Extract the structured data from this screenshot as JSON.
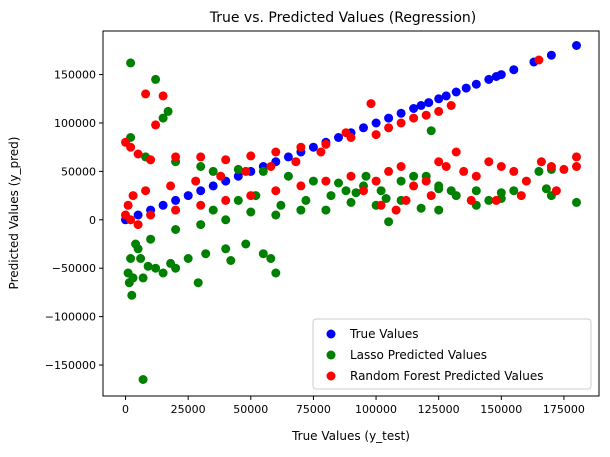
{
  "chart_data": {
    "type": "scatter",
    "title": "True vs. Predicted Values (Regression)",
    "xlabel": "True Values (y_test)",
    "ylabel": "Predicted Values (y_pred)",
    "xlim": [
      -9000,
      189000
    ],
    "ylim": [
      -182000,
      195000
    ],
    "x_ticks": [
      0,
      25000,
      50000,
      75000,
      100000,
      125000,
      150000,
      175000
    ],
    "x_tick_labels": [
      "0",
      "25000",
      "50000",
      "75000",
      "100000",
      "125000",
      "150000",
      "175000"
    ],
    "y_ticks": [
      -150000,
      -100000,
      -50000,
      0,
      50000,
      100000,
      150000
    ],
    "y_tick_labels": [
      "−150000",
      "−100000",
      "−50000",
      "0",
      "50000",
      "100000",
      "150000"
    ],
    "grid": false,
    "legend_position": "bottom-right",
    "series": [
      {
        "name": "True Values",
        "color": "#0000ff",
        "points": [
          [
            0,
            0
          ],
          [
            5000,
            5000
          ],
          [
            10000,
            10000
          ],
          [
            15000,
            15000
          ],
          [
            20000,
            20000
          ],
          [
            25000,
            25000
          ],
          [
            30000,
            30000
          ],
          [
            35000,
            35000
          ],
          [
            40000,
            40000
          ],
          [
            45000,
            45000
          ],
          [
            50000,
            50000
          ],
          [
            55000,
            55000
          ],
          [
            60000,
            60000
          ],
          [
            65000,
            65000
          ],
          [
            70000,
            70000
          ],
          [
            75000,
            75000
          ],
          [
            80000,
            80000
          ],
          [
            85000,
            85000
          ],
          [
            90000,
            90000
          ],
          [
            95000,
            95000
          ],
          [
            100000,
            100000
          ],
          [
            105000,
            105000
          ],
          [
            110000,
            110000
          ],
          [
            115000,
            115000
          ],
          [
            118000,
            118000
          ],
          [
            121000,
            121000
          ],
          [
            125000,
            125000
          ],
          [
            128000,
            128000
          ],
          [
            132000,
            132000
          ],
          [
            136000,
            136000
          ],
          [
            140000,
            140000
          ],
          [
            145000,
            145000
          ],
          [
            148000,
            148000
          ],
          [
            150000,
            150000
          ],
          [
            155000,
            155000
          ],
          [
            163000,
            163000
          ],
          [
            170000,
            170000
          ],
          [
            180000,
            180000
          ]
        ]
      },
      {
        "name": "Lasso Predicted Values",
        "color": "#008000",
        "points": [
          [
            2000,
            162000
          ],
          [
            12000,
            145000
          ],
          [
            17000,
            112000
          ],
          [
            15000,
            105000
          ],
          [
            2000,
            85000
          ],
          [
            8000,
            65000
          ],
          [
            20000,
            60000
          ],
          [
            30000,
            55000
          ],
          [
            35000,
            50000
          ],
          [
            45000,
            52000
          ],
          [
            55000,
            50000
          ],
          [
            65000,
            45000
          ],
          [
            75000,
            40000
          ],
          [
            85000,
            38000
          ],
          [
            95000,
            35000
          ],
          [
            102000,
            30000
          ],
          [
            110000,
            40000
          ],
          [
            115000,
            45000
          ],
          [
            120000,
            45000
          ],
          [
            122000,
            92000
          ],
          [
            125000,
            32000
          ],
          [
            130000,
            30000
          ],
          [
            140000,
            30000
          ],
          [
            150000,
            28000
          ],
          [
            155000,
            30000
          ],
          [
            165000,
            50000
          ],
          [
            168000,
            32000
          ],
          [
            170000,
            52000
          ],
          [
            180000,
            18000
          ],
          [
            170000,
            25000
          ],
          [
            150000,
            22000
          ],
          [
            140000,
            15000
          ],
          [
            125000,
            10000
          ],
          [
            110000,
            20000
          ],
          [
            100000,
            15000
          ],
          [
            90000,
            18000
          ],
          [
            80000,
            10000
          ],
          [
            70000,
            10000
          ],
          [
            60000,
            5000
          ],
          [
            50000,
            8000
          ],
          [
            40000,
            0
          ],
          [
            30000,
            -5000
          ],
          [
            20000,
            -10000
          ],
          [
            10000,
            -20000
          ],
          [
            5000,
            -30000
          ],
          [
            2000,
            -40000
          ],
          [
            1000,
            -55000
          ],
          [
            3000,
            -60000
          ],
          [
            1500,
            -65000
          ],
          [
            2500,
            -78000
          ],
          [
            7000,
            -60000
          ],
          [
            12000,
            -50000
          ],
          [
            18000,
            -45000
          ],
          [
            25000,
            -40000
          ],
          [
            32000,
            -35000
          ],
          [
            40000,
            -30000
          ],
          [
            48000,
            -25000
          ],
          [
            55000,
            -35000
          ],
          [
            60000,
            -55000
          ],
          [
            58000,
            -40000
          ],
          [
            42000,
            -42000
          ],
          [
            29000,
            -65000
          ],
          [
            20000,
            -50000
          ],
          [
            15000,
            -55000
          ],
          [
            9000,
            -48000
          ],
          [
            6000,
            -40000
          ],
          [
            4000,
            -25000
          ],
          [
            7000,
            -165000
          ],
          [
            35000,
            10000
          ],
          [
            45000,
            20000
          ],
          [
            52000,
            25000
          ],
          [
            62000,
            15000
          ],
          [
            72000,
            20000
          ],
          [
            82000,
            25000
          ],
          [
            92000,
            28000
          ],
          [
            104000,
            22000
          ],
          [
            118000,
            12000
          ],
          [
            132000,
            25000
          ],
          [
            145000,
            20000
          ],
          [
            105000,
            -2000
          ],
          [
            125000,
            35000
          ],
          [
            96000,
            45000
          ],
          [
            88000,
            30000
          ]
        ]
      },
      {
        "name": "Random Forest Predicted Values",
        "color": "#ff0000",
        "points": [
          [
            8000,
            130000
          ],
          [
            15000,
            128000
          ],
          [
            12000,
            98000
          ],
          [
            0,
            80000
          ],
          [
            2000,
            75000
          ],
          [
            5000,
            68000
          ],
          [
            10000,
            62000
          ],
          [
            20000,
            65000
          ],
          [
            30000,
            65000
          ],
          [
            40000,
            62000
          ],
          [
            50000,
            66000
          ],
          [
            60000,
            70000
          ],
          [
            70000,
            75000
          ],
          [
            80000,
            78000
          ],
          [
            90000,
            85000
          ],
          [
            100000,
            88000
          ],
          [
            105000,
            95000
          ],
          [
            110000,
            100000
          ],
          [
            115000,
            105000
          ],
          [
            120000,
            108000
          ],
          [
            125000,
            112000
          ],
          [
            130000,
            118000
          ],
          [
            98000,
            120000
          ],
          [
            88000,
            90000
          ],
          [
            78000,
            70000
          ],
          [
            68000,
            60000
          ],
          [
            58000,
            55000
          ],
          [
            48000,
            50000
          ],
          [
            38000,
            45000
          ],
          [
            28000,
            40000
          ],
          [
            18000,
            35000
          ],
          [
            8000,
            30000
          ],
          [
            3000,
            25000
          ],
          [
            1000,
            15000
          ],
          [
            0,
            5000
          ],
          [
            2000,
            0
          ],
          [
            5000,
            -5000
          ],
          [
            10000,
            5000
          ],
          [
            20000,
            10000
          ],
          [
            30000,
            15000
          ],
          [
            40000,
            20000
          ],
          [
            50000,
            25000
          ],
          [
            60000,
            30000
          ],
          [
            70000,
            35000
          ],
          [
            80000,
            40000
          ],
          [
            90000,
            45000
          ],
          [
            95000,
            30000
          ],
          [
            100000,
            40000
          ],
          [
            105000,
            50000
          ],
          [
            110000,
            55000
          ],
          [
            115000,
            35000
          ],
          [
            120000,
            40000
          ],
          [
            122000,
            25000
          ],
          [
            125000,
            60000
          ],
          [
            128000,
            55000
          ],
          [
            132000,
            70000
          ],
          [
            135000,
            50000
          ],
          [
            140000,
            45000
          ],
          [
            145000,
            60000
          ],
          [
            150000,
            55000
          ],
          [
            155000,
            50000
          ],
          [
            158000,
            25000
          ],
          [
            160000,
            40000
          ],
          [
            165000,
            165000
          ],
          [
            166000,
            60000
          ],
          [
            170000,
            55000
          ],
          [
            175000,
            52000
          ],
          [
            180000,
            65000
          ],
          [
            180000,
            55000
          ],
          [
            172000,
            30000
          ],
          [
            148000,
            20000
          ],
          [
            138000,
            20000
          ],
          [
            112000,
            20000
          ],
          [
            108000,
            10000
          ],
          [
            102000,
            15000
          ]
        ]
      }
    ]
  }
}
